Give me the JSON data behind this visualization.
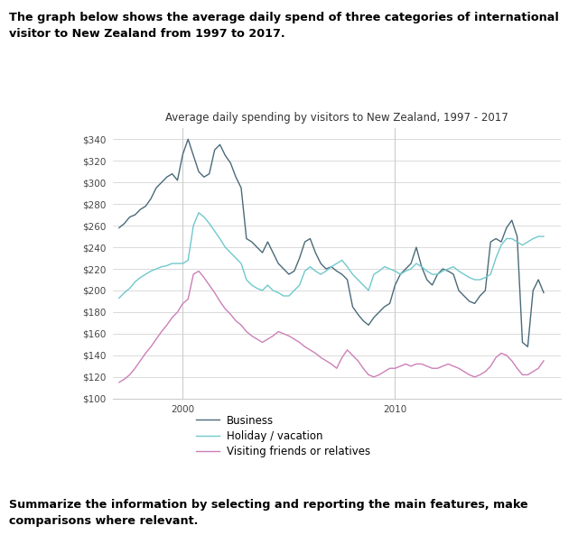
{
  "title": "Average daily spending by visitors to New Zealand, 1997 - 2017",
  "ylim": [
    100,
    350
  ],
  "yticks": [
    100,
    120,
    140,
    160,
    180,
    200,
    220,
    240,
    260,
    280,
    300,
    320,
    340
  ],
  "xlim_start": 1996.7,
  "xlim_end": 2017.8,
  "xticks": [
    2000,
    2010
  ],
  "vlines": [
    2000,
    2010
  ],
  "legend_labels": [
    "Business",
    "Holiday / vacation",
    "Visiting friends or relatives"
  ],
  "colors": {
    "business": "#4a6a7a",
    "holiday": "#70c8cc",
    "vfr": "#cc80b8"
  },
  "header_text": "The graph below shows the average daily spend of three categories of international\nvisitor to New Zealand from 1997 to 2017.",
  "footer_text": "Summarize the information by selecting and reporting the main features, make\ncomparisons where relevant.",
  "business": [
    [
      1997.0,
      258
    ],
    [
      1997.25,
      262
    ],
    [
      1997.5,
      268
    ],
    [
      1997.75,
      270
    ],
    [
      1998.0,
      275
    ],
    [
      1998.25,
      278
    ],
    [
      1998.5,
      285
    ],
    [
      1998.75,
      295
    ],
    [
      1999.0,
      300
    ],
    [
      1999.25,
      305
    ],
    [
      1999.5,
      308
    ],
    [
      1999.75,
      302
    ],
    [
      2000.0,
      326
    ],
    [
      2000.25,
      340
    ],
    [
      2000.5,
      325
    ],
    [
      2000.75,
      310
    ],
    [
      2001.0,
      305
    ],
    [
      2001.25,
      308
    ],
    [
      2001.5,
      330
    ],
    [
      2001.75,
      335
    ],
    [
      2002.0,
      325
    ],
    [
      2002.25,
      318
    ],
    [
      2002.5,
      305
    ],
    [
      2002.75,
      295
    ],
    [
      2003.0,
      248
    ],
    [
      2003.25,
      245
    ],
    [
      2003.5,
      240
    ],
    [
      2003.75,
      235
    ],
    [
      2004.0,
      245
    ],
    [
      2004.25,
      235
    ],
    [
      2004.5,
      225
    ],
    [
      2004.75,
      220
    ],
    [
      2005.0,
      215
    ],
    [
      2005.25,
      218
    ],
    [
      2005.5,
      230
    ],
    [
      2005.75,
      245
    ],
    [
      2006.0,
      248
    ],
    [
      2006.25,
      235
    ],
    [
      2006.5,
      225
    ],
    [
      2006.75,
      220
    ],
    [
      2007.0,
      222
    ],
    [
      2007.25,
      218
    ],
    [
      2007.5,
      215
    ],
    [
      2007.75,
      210
    ],
    [
      2008.0,
      185
    ],
    [
      2008.25,
      178
    ],
    [
      2008.5,
      172
    ],
    [
      2008.75,
      168
    ],
    [
      2009.0,
      175
    ],
    [
      2009.25,
      180
    ],
    [
      2009.5,
      185
    ],
    [
      2009.75,
      188
    ],
    [
      2010.0,
      205
    ],
    [
      2010.25,
      215
    ],
    [
      2010.5,
      220
    ],
    [
      2010.75,
      225
    ],
    [
      2011.0,
      240
    ],
    [
      2011.25,
      222
    ],
    [
      2011.5,
      210
    ],
    [
      2011.75,
      205
    ],
    [
      2012.0,
      215
    ],
    [
      2012.25,
      220
    ],
    [
      2012.5,
      218
    ],
    [
      2012.75,
      215
    ],
    [
      2013.0,
      200
    ],
    [
      2013.25,
      195
    ],
    [
      2013.5,
      190
    ],
    [
      2013.75,
      188
    ],
    [
      2014.0,
      195
    ],
    [
      2014.25,
      200
    ],
    [
      2014.5,
      245
    ],
    [
      2014.75,
      248
    ],
    [
      2015.0,
      245
    ],
    [
      2015.25,
      258
    ],
    [
      2015.5,
      265
    ],
    [
      2015.75,
      250
    ],
    [
      2016.0,
      152
    ],
    [
      2016.25,
      148
    ],
    [
      2016.5,
      200
    ],
    [
      2016.75,
      210
    ],
    [
      2017.0,
      198
    ]
  ],
  "holiday": [
    [
      1997.0,
      193
    ],
    [
      1997.25,
      198
    ],
    [
      1997.5,
      202
    ],
    [
      1997.75,
      208
    ],
    [
      1998.0,
      212
    ],
    [
      1998.25,
      215
    ],
    [
      1998.5,
      218
    ],
    [
      1998.75,
      220
    ],
    [
      1999.0,
      222
    ],
    [
      1999.25,
      223
    ],
    [
      1999.5,
      225
    ],
    [
      1999.75,
      225
    ],
    [
      2000.0,
      225
    ],
    [
      2000.25,
      228
    ],
    [
      2000.5,
      260
    ],
    [
      2000.75,
      272
    ],
    [
      2001.0,
      268
    ],
    [
      2001.25,
      262
    ],
    [
      2001.5,
      255
    ],
    [
      2001.75,
      248
    ],
    [
      2002.0,
      240
    ],
    [
      2002.25,
      235
    ],
    [
      2002.5,
      230
    ],
    [
      2002.75,
      225
    ],
    [
      2003.0,
      210
    ],
    [
      2003.25,
      205
    ],
    [
      2003.5,
      202
    ],
    [
      2003.75,
      200
    ],
    [
      2004.0,
      205
    ],
    [
      2004.25,
      200
    ],
    [
      2004.5,
      198
    ],
    [
      2004.75,
      195
    ],
    [
      2005.0,
      195
    ],
    [
      2005.25,
      200
    ],
    [
      2005.5,
      205
    ],
    [
      2005.75,
      218
    ],
    [
      2006.0,
      222
    ],
    [
      2006.25,
      218
    ],
    [
      2006.5,
      215
    ],
    [
      2006.75,
      218
    ],
    [
      2007.0,
      222
    ],
    [
      2007.25,
      225
    ],
    [
      2007.5,
      228
    ],
    [
      2007.75,
      222
    ],
    [
      2008.0,
      215
    ],
    [
      2008.25,
      210
    ],
    [
      2008.5,
      205
    ],
    [
      2008.75,
      200
    ],
    [
      2009.0,
      215
    ],
    [
      2009.25,
      218
    ],
    [
      2009.5,
      222
    ],
    [
      2009.75,
      220
    ],
    [
      2010.0,
      218
    ],
    [
      2010.25,
      215
    ],
    [
      2010.5,
      218
    ],
    [
      2010.75,
      220
    ],
    [
      2011.0,
      225
    ],
    [
      2011.25,
      222
    ],
    [
      2011.5,
      218
    ],
    [
      2011.75,
      215
    ],
    [
      2012.0,
      215
    ],
    [
      2012.25,
      218
    ],
    [
      2012.5,
      220
    ],
    [
      2012.75,
      222
    ],
    [
      2013.0,
      218
    ],
    [
      2013.25,
      215
    ],
    [
      2013.5,
      212
    ],
    [
      2013.75,
      210
    ],
    [
      2014.0,
      210
    ],
    [
      2014.25,
      212
    ],
    [
      2014.5,
      215
    ],
    [
      2014.75,
      230
    ],
    [
      2015.0,
      242
    ],
    [
      2015.25,
      248
    ],
    [
      2015.5,
      248
    ],
    [
      2015.75,
      245
    ],
    [
      2016.0,
      242
    ],
    [
      2016.25,
      245
    ],
    [
      2016.5,
      248
    ],
    [
      2016.75,
      250
    ],
    [
      2017.0,
      250
    ]
  ],
  "vfr": [
    [
      1997.0,
      115
    ],
    [
      1997.25,
      118
    ],
    [
      1997.5,
      122
    ],
    [
      1997.75,
      128
    ],
    [
      1998.0,
      135
    ],
    [
      1998.25,
      142
    ],
    [
      1998.5,
      148
    ],
    [
      1998.75,
      155
    ],
    [
      1999.0,
      162
    ],
    [
      1999.25,
      168
    ],
    [
      1999.5,
      175
    ],
    [
      1999.75,
      180
    ],
    [
      2000.0,
      188
    ],
    [
      2000.25,
      192
    ],
    [
      2000.5,
      215
    ],
    [
      2000.75,
      218
    ],
    [
      2001.0,
      212
    ],
    [
      2001.25,
      205
    ],
    [
      2001.5,
      198
    ],
    [
      2001.75,
      190
    ],
    [
      2002.0,
      183
    ],
    [
      2002.25,
      178
    ],
    [
      2002.5,
      172
    ],
    [
      2002.75,
      168
    ],
    [
      2003.0,
      162
    ],
    [
      2003.25,
      158
    ],
    [
      2003.5,
      155
    ],
    [
      2003.75,
      152
    ],
    [
      2004.0,
      155
    ],
    [
      2004.25,
      158
    ],
    [
      2004.5,
      162
    ],
    [
      2004.75,
      160
    ],
    [
      2005.0,
      158
    ],
    [
      2005.25,
      155
    ],
    [
      2005.5,
      152
    ],
    [
      2005.75,
      148
    ],
    [
      2006.0,
      145
    ],
    [
      2006.25,
      142
    ],
    [
      2006.5,
      138
    ],
    [
      2006.75,
      135
    ],
    [
      2007.0,
      132
    ],
    [
      2007.25,
      128
    ],
    [
      2007.5,
      138
    ],
    [
      2007.75,
      145
    ],
    [
      2008.0,
      140
    ],
    [
      2008.25,
      135
    ],
    [
      2008.5,
      128
    ],
    [
      2008.75,
      122
    ],
    [
      2009.0,
      120
    ],
    [
      2009.25,
      122
    ],
    [
      2009.5,
      125
    ],
    [
      2009.75,
      128
    ],
    [
      2010.0,
      128
    ],
    [
      2010.25,
      130
    ],
    [
      2010.5,
      132
    ],
    [
      2010.75,
      130
    ],
    [
      2011.0,
      132
    ],
    [
      2011.25,
      132
    ],
    [
      2011.5,
      130
    ],
    [
      2011.75,
      128
    ],
    [
      2012.0,
      128
    ],
    [
      2012.25,
      130
    ],
    [
      2012.5,
      132
    ],
    [
      2012.75,
      130
    ],
    [
      2013.0,
      128
    ],
    [
      2013.25,
      125
    ],
    [
      2013.5,
      122
    ],
    [
      2013.75,
      120
    ],
    [
      2014.0,
      122
    ],
    [
      2014.25,
      125
    ],
    [
      2014.5,
      130
    ],
    [
      2014.75,
      138
    ],
    [
      2015.0,
      142
    ],
    [
      2015.25,
      140
    ],
    [
      2015.5,
      135
    ],
    [
      2015.75,
      128
    ],
    [
      2016.0,
      122
    ],
    [
      2016.25,
      122
    ],
    [
      2016.5,
      125
    ],
    [
      2016.75,
      128
    ],
    [
      2017.0,
      135
    ]
  ]
}
